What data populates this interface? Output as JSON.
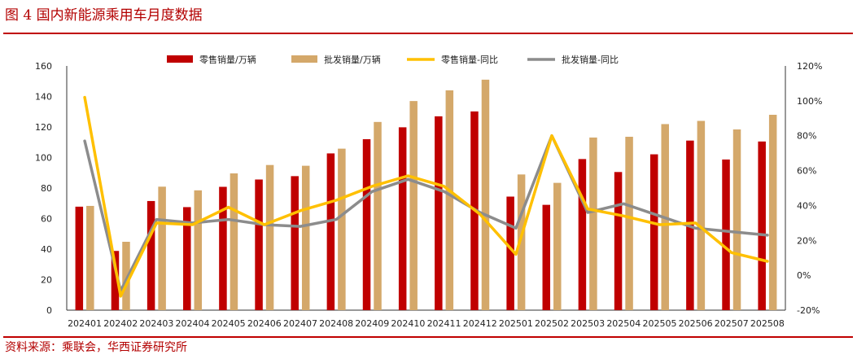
{
  "header": {
    "figure_title": "图 4 国内新能源乘用车月度数据"
  },
  "footer": {
    "source": "资料来源：乘联会，华西证券研究所"
  },
  "colors": {
    "accent": "#c00000",
    "retail_bar": "#c00000",
    "wholesale_bar": "#d4a86a",
    "retail_yoy": "#ffc000",
    "wholesale_yoy": "#8c8c8c"
  },
  "chart_data": {
    "type": "bar",
    "categories": [
      "202401",
      "202402",
      "202403",
      "202404",
      "202405",
      "202406",
      "202407",
      "202408",
      "202409",
      "202410",
      "202411",
      "202412",
      "202501",
      "202502",
      "202503",
      "202504",
      "202505",
      "202506",
      "202507",
      "202508"
    ],
    "series": [
      {
        "name": "零售销量/万辆",
        "kind": "bar",
        "axis": "left",
        "color": "#c00000",
        "values": [
          67.8,
          38.8,
          71.5,
          67.5,
          80.8,
          85.6,
          87.8,
          102.7,
          112.0,
          119.8,
          127.0,
          130.2,
          74.4,
          69.0,
          99.0,
          90.5,
          102.1,
          111.1,
          98.7,
          110.5
        ]
      },
      {
        "name": "批发销量/万辆",
        "kind": "bar",
        "axis": "left",
        "color": "#d4a86a",
        "values": [
          68.3,
          44.8,
          80.9,
          78.5,
          89.6,
          95.1,
          94.6,
          105.8,
          123.3,
          137.0,
          144.0,
          151.0,
          88.9,
          83.4,
          113.1,
          113.6,
          121.9,
          124.0,
          118.4,
          128.0
        ]
      },
      {
        "name": "零售销量-同比",
        "kind": "line",
        "axis": "right",
        "unit": "%",
        "color": "#ffc000",
        "values": [
          102,
          -12,
          30,
          29,
          39,
          29,
          37,
          43,
          51,
          57,
          51,
          35,
          12,
          80,
          38,
          34,
          29,
          30,
          13,
          8
        ]
      },
      {
        "name": "批发销量-同比",
        "kind": "line",
        "axis": "right",
        "unit": "%",
        "color": "#8c8c8c",
        "values": [
          77,
          -9,
          32,
          30,
          32,
          29,
          28,
          32,
          48,
          55,
          48,
          36,
          27,
          80,
          36,
          41,
          34,
          27,
          25,
          23
        ]
      }
    ],
    "y_left": {
      "range": [
        0,
        160
      ],
      "ticks": [
        "0",
        "20",
        "40",
        "60",
        "80",
        "100",
        "120",
        "140",
        "160"
      ]
    },
    "y_right": {
      "range": [
        -20,
        120
      ],
      "ticks": [
        "-20%",
        "0%",
        "20%",
        "40%",
        "60%",
        "80%",
        "100%",
        "120%"
      ]
    },
    "grid": false,
    "legend_position": "top"
  }
}
